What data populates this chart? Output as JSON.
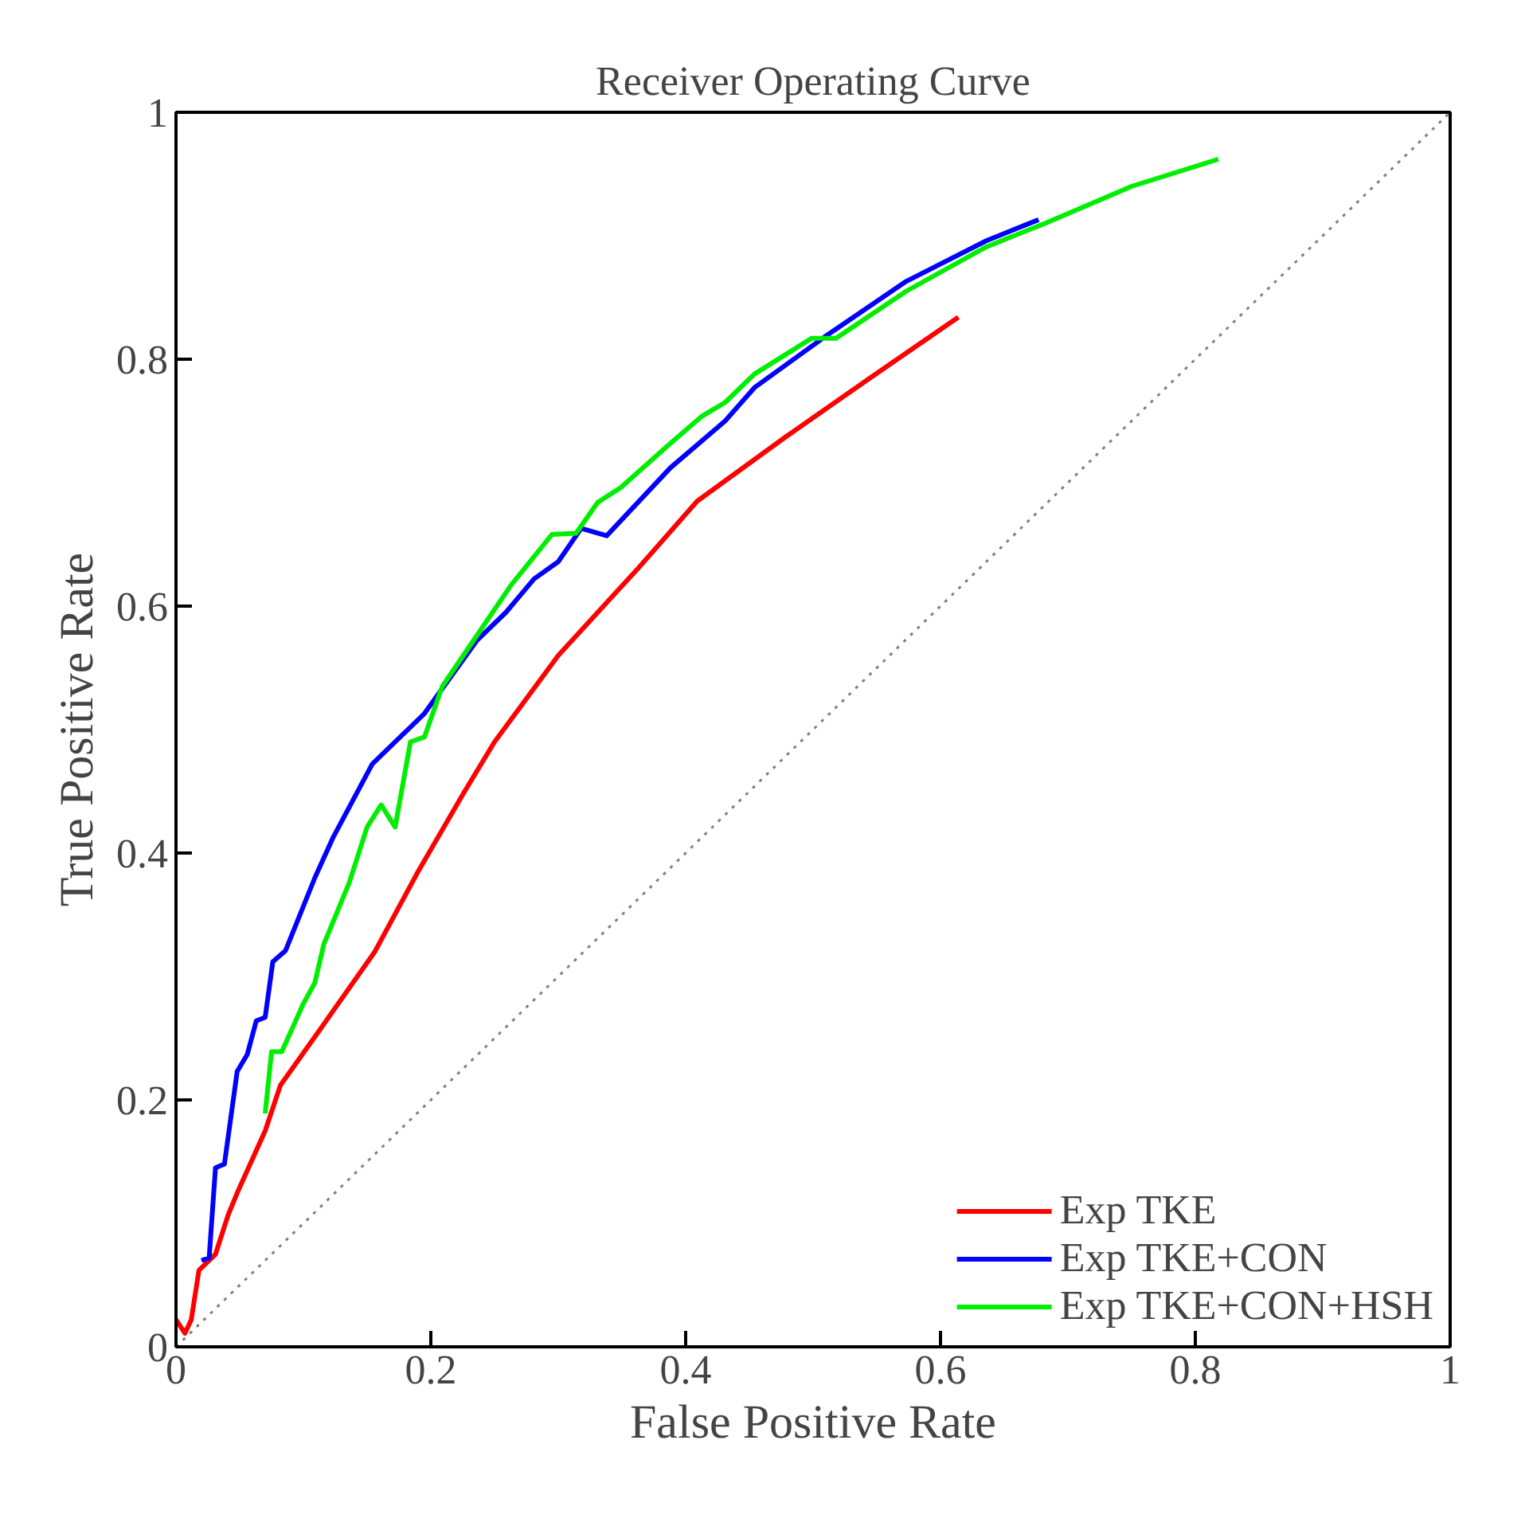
{
  "chart_data": {
    "type": "line",
    "title": "Receiver Operating Curve",
    "xlabel": "False Positive Rate",
    "ylabel": "True Positive Rate",
    "xlim": [
      0,
      1
    ],
    "ylim": [
      0,
      1
    ],
    "xticks": [
      0,
      0.2,
      0.4,
      0.6,
      0.8,
      1
    ],
    "yticks": [
      0,
      0.2,
      0.4,
      0.6,
      0.8,
      1
    ],
    "grid": false,
    "legend": "bottom right",
    "marker": "none",
    "line_style": "solid",
    "series": [
      {
        "name": "Exp TKE",
        "color": "#ff0000",
        "x": [
          0,
          0.007,
          0.012,
          0.018,
          0.031,
          0.041,
          0.049,
          0.07,
          0.082,
          0.113,
          0.156,
          0.19,
          0.226,
          0.25,
          0.3,
          0.363,
          0.409,
          0.477,
          0.545,
          0.614
        ],
        "values": [
          0.022,
          0.011,
          0.022,
          0.062,
          0.075,
          0.107,
          0.127,
          0.175,
          0.212,
          0.257,
          0.32,
          0.385,
          0.449,
          0.49,
          0.56,
          0.631,
          0.685,
          0.736,
          0.785,
          0.834
        ]
      },
      {
        "name": "Exp TKE+CON",
        "color": "#0000ff",
        "x": [
          0.02,
          0.026,
          0.031,
          0.038,
          0.048,
          0.056,
          0.063,
          0.07,
          0.076,
          0.086,
          0.109,
          0.123,
          0.154,
          0.168,
          0.195,
          0.236,
          0.259,
          0.281,
          0.3,
          0.318,
          0.338,
          0.388,
          0.431,
          0.454,
          0.509,
          0.573,
          0.636,
          0.677
        ],
        "values": [
          0.07,
          0.072,
          0.145,
          0.148,
          0.223,
          0.237,
          0.264,
          0.267,
          0.312,
          0.321,
          0.38,
          0.412,
          0.472,
          0.486,
          0.513,
          0.572,
          0.595,
          0.622,
          0.636,
          0.663,
          0.657,
          0.712,
          0.75,
          0.777,
          0.818,
          0.863,
          0.896,
          0.913
        ]
      },
      {
        "name": "Exp TKE+CON+HSH",
        "color": "#00ee00",
        "x": [
          0.07,
          0.075,
          0.083,
          0.1,
          0.109,
          0.116,
          0.136,
          0.15,
          0.161,
          0.172,
          0.184,
          0.195,
          0.209,
          0.236,
          0.263,
          0.295,
          0.314,
          0.331,
          0.349,
          0.386,
          0.413,
          0.431,
          0.454,
          0.499,
          0.518,
          0.573,
          0.636,
          0.682,
          0.75,
          0.818
        ],
        "values": [
          0.189,
          0.239,
          0.239,
          0.278,
          0.295,
          0.326,
          0.376,
          0.421,
          0.439,
          0.421,
          0.49,
          0.494,
          0.535,
          0.576,
          0.617,
          0.658,
          0.659,
          0.684,
          0.696,
          0.73,
          0.754,
          0.765,
          0.788,
          0.817,
          0.817,
          0.855,
          0.891,
          0.91,
          0.94,
          0.962
        ]
      },
      {
        "color": "#808080",
        "line_style": "dotted",
        "x": [
          0,
          1
        ],
        "values": [
          0,
          1
        ]
      }
    ]
  }
}
